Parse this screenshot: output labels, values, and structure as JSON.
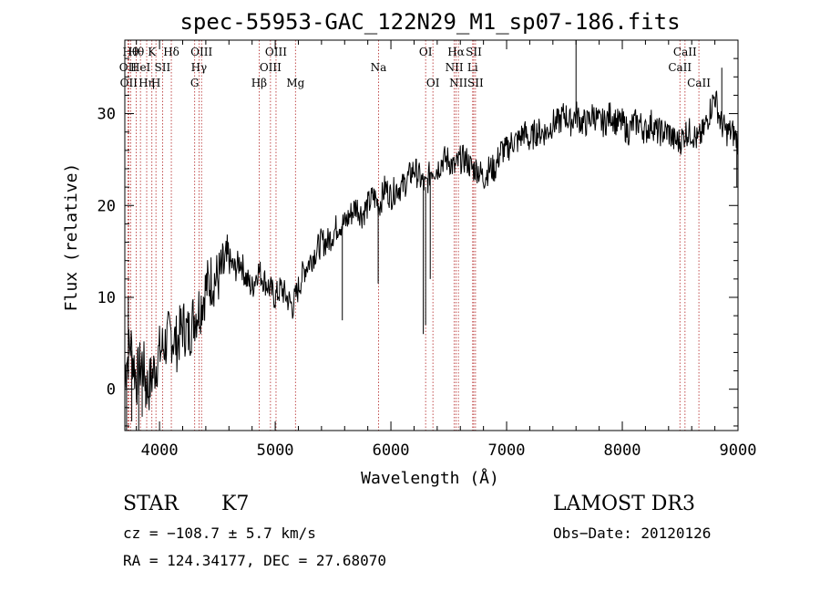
{
  "chart_data": {
    "type": "line",
    "title": "spec-55953-GAC_122N29_M1_sp07-186.fits",
    "xlabel": "Wavelength (Å)",
    "ylabel": "Flux (relative)",
    "xlim": [
      3700,
      9000
    ],
    "ylim": [
      -4.5,
      38
    ],
    "xticks": [
      4000,
      5000,
      6000,
      7000,
      8000,
      9000
    ],
    "yticks": [
      0,
      10,
      20,
      30
    ],
    "series": [
      {
        "name": "flux",
        "x": [
          3700,
          3750,
          3800,
          3850,
          3900,
          3950,
          4000,
          4050,
          4100,
          4150,
          4200,
          4250,
          4300,
          4350,
          4400,
          4450,
          4500,
          4550,
          4600,
          4650,
          4700,
          4750,
          4800,
          4850,
          4900,
          4950,
          5000,
          5050,
          5100,
          5150,
          5200,
          5250,
          5300,
          5350,
          5400,
          5450,
          5500,
          5550,
          5600,
          5650,
          5700,
          5750,
          5800,
          5850,
          5900,
          5950,
          6000,
          6050,
          6100,
          6150,
          6200,
          6250,
          6300,
          6350,
          6400,
          6450,
          6500,
          6550,
          6600,
          6650,
          6700,
          6750,
          6800,
          6850,
          6900,
          6950,
          7000,
          7050,
          7100,
          7150,
          7200,
          7250,
          7300,
          7350,
          7400,
          7450,
          7500,
          7550,
          7600,
          7650,
          7700,
          7750,
          7800,
          7850,
          7900,
          7950,
          8000,
          8050,
          8100,
          8150,
          8200,
          8250,
          8300,
          8350,
          8400,
          8450,
          8500,
          8550,
          8600,
          8650,
          8700,
          8750,
          8800,
          8850,
          8900,
          8950,
          9000
        ],
        "y": [
          2,
          5,
          1,
          3,
          0,
          2,
          4,
          5,
          6,
          5,
          7,
          6,
          8,
          9,
          11,
          12,
          12,
          13,
          14,
          13,
          14,
          12,
          11,
          13,
          12,
          11,
          10,
          11,
          10,
          9,
          11,
          13,
          14,
          15,
          16,
          16,
          17,
          18,
          18,
          19,
          20,
          19,
          20,
          21,
          20,
          22,
          21,
          22,
          22,
          23,
          24,
          23,
          22,
          24,
          24,
          25,
          25,
          24,
          25,
          25,
          24,
          24,
          23,
          24,
          24,
          26,
          26,
          27,
          27,
          28,
          27,
          28,
          28,
          28,
          29,
          29,
          30,
          29,
          30,
          29,
          29,
          30,
          29,
          29,
          30,
          29,
          29,
          28,
          29,
          29,
          28,
          29,
          28,
          28,
          28,
          27,
          27,
          28,
          28,
          27,
          28,
          30,
          32,
          29,
          28,
          28,
          27
        ]
      }
    ],
    "spikes": [
      {
        "x": 3715,
        "y": -4.5
      },
      {
        "x": 3730,
        "y": 10
      },
      {
        "x": 3760,
        "y": -3.5
      },
      {
        "x": 3820,
        "y": -4.5
      },
      {
        "x": 3850,
        "y": -3
      },
      {
        "x": 3880,
        "y": -2
      },
      {
        "x": 5580,
        "y": 7.5
      },
      {
        "x": 5890,
        "y": 11.5
      },
      {
        "x": 6280,
        "y": 6
      },
      {
        "x": 6300,
        "y": 7
      },
      {
        "x": 6340,
        "y": 12
      },
      {
        "x": 7600,
        "y": 38
      },
      {
        "x": 8860,
        "y": 35
      },
      {
        "x": 8990,
        "y": 22
      }
    ],
    "lines": [
      {
        "x": 3727,
        "label": "OII",
        "row": 2
      },
      {
        "x": 3734,
        "label": "OII",
        "row": 3
      },
      {
        "x": 3750,
        "label": "Hθ",
        "row": 1
      },
      {
        "x": 3798,
        "label": "Hθ",
        "row": 1
      },
      {
        "x": 3835,
        "label": "HeI",
        "row": 2
      },
      {
        "x": 3889,
        "label": "Hη",
        "row": 3
      },
      {
        "x": 3934,
        "label": "K",
        "row": 1
      },
      {
        "x": 3969,
        "label": "H",
        "row": 3
      },
      {
        "x": 4026,
        "label": "SII",
        "row": 2
      },
      {
        "x": 4102,
        "label": "Hδ",
        "row": 1
      },
      {
        "x": 4304,
        "label": "G",
        "row": 3
      },
      {
        "x": 4341,
        "label": "Hγ",
        "row": 2
      },
      {
        "x": 4363,
        "label": "OIII",
        "row": 1
      },
      {
        "x": 4861,
        "label": "Hβ",
        "row": 3
      },
      {
        "x": 4959,
        "label": "OIII",
        "row": 2
      },
      {
        "x": 5007,
        "label": "OIII",
        "row": 1
      },
      {
        "x": 5175,
        "label": "Mg",
        "row": 3
      },
      {
        "x": 5893,
        "label": "Na",
        "row": 2
      },
      {
        "x": 6300,
        "label": "OI",
        "row": 1
      },
      {
        "x": 6363,
        "label": "OI",
        "row": 3
      },
      {
        "x": 6548,
        "label": "NII",
        "row": 2
      },
      {
        "x": 6563,
        "label": "Hα",
        "row": 1
      },
      {
        "x": 6583,
        "label": "NII",
        "row": 3
      },
      {
        "x": 6707,
        "label": "Li",
        "row": 2
      },
      {
        "x": 6716,
        "label": "SII",
        "row": 1
      },
      {
        "x": 6731,
        "label": "SII",
        "row": 3
      },
      {
        "x": 8498,
        "label": "CaII",
        "row": 2
      },
      {
        "x": 8542,
        "label": "CaII",
        "row": 1
      },
      {
        "x": 8662,
        "label": "CaII",
        "row": 3
      }
    ]
  },
  "footer": {
    "class": "STAR",
    "subclass": "K7",
    "survey": "LAMOST DR3",
    "cz": "cz = −108.7 ± 5.7 km/s",
    "obs_date": "Obs−Date: 20120126",
    "radec": "RA = 124.34177, DEC =  27.68070"
  },
  "colors": {
    "line_marker": "#b22222",
    "spectrum": "#000000"
  }
}
